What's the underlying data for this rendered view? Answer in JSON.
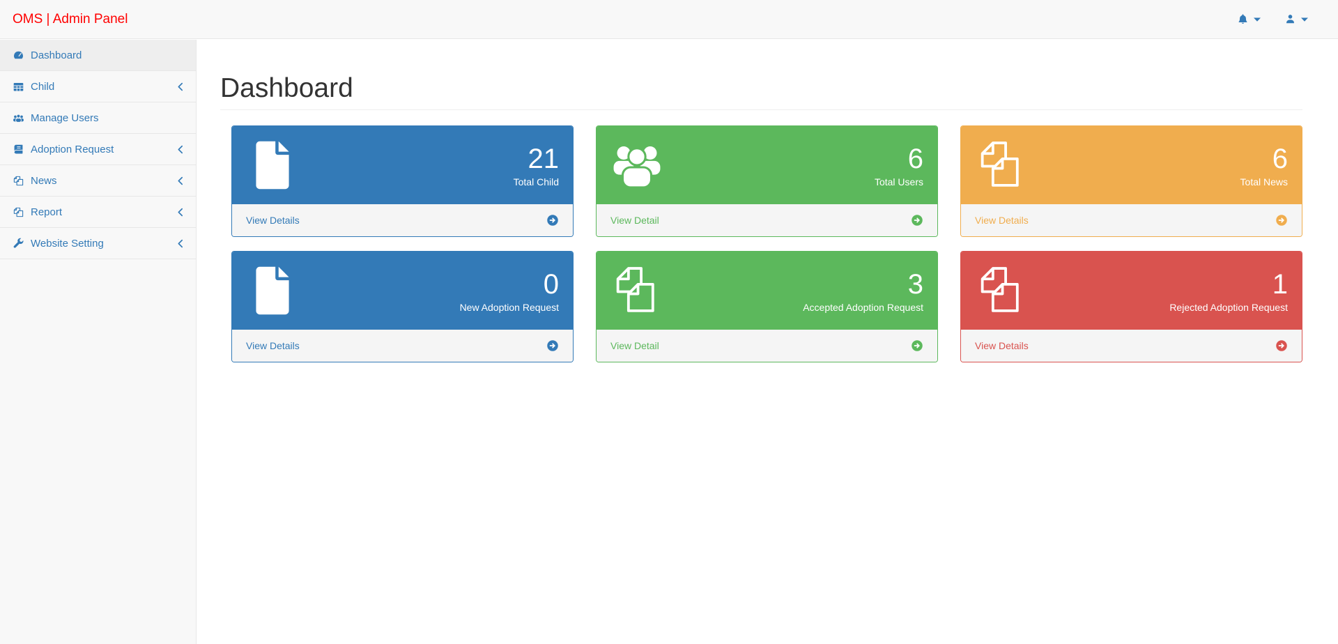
{
  "header": {
    "brand": "OMS | Admin Panel",
    "right_menus": [
      {
        "name": "notifications",
        "icon": "bell-icon",
        "caret_icon": "caret-down-icon"
      },
      {
        "name": "user",
        "icon": "user-icon",
        "caret_icon": "caret-down-icon"
      }
    ]
  },
  "sidebar": {
    "items": [
      {
        "label": "Dashboard",
        "icon": "dashboard-icon",
        "active": true,
        "has_submenu": false
      },
      {
        "label": "Child",
        "icon": "table-icon",
        "active": false,
        "has_submenu": true
      },
      {
        "label": "Manage Users",
        "icon": "users-icon",
        "active": false,
        "has_submenu": false
      },
      {
        "label": "Adoption Request",
        "icon": "book-icon",
        "active": false,
        "has_submenu": true
      },
      {
        "label": "News",
        "icon": "copy-icon",
        "active": false,
        "has_submenu": true
      },
      {
        "label": "Report",
        "icon": "copy-icon",
        "active": false,
        "has_submenu": true
      },
      {
        "label": "Website Setting",
        "icon": "wrench-icon",
        "active": false,
        "has_submenu": true
      }
    ]
  },
  "page": {
    "title": "Dashboard"
  },
  "cards": [
    {
      "value": 21,
      "label": "Total Child",
      "link_label": "View Details",
      "color": "#337ab7",
      "icon": "file-icon"
    },
    {
      "value": 6,
      "label": "Total Users",
      "link_label": "View Detail",
      "color": "#5cb85c",
      "icon": "users-icon"
    },
    {
      "value": 6,
      "label": "Total News",
      "link_label": "View Details",
      "color": "#f0ad4e",
      "icon": "copy-icon"
    },
    {
      "value": 0,
      "label": "New Adoption Request",
      "link_label": "View Details",
      "color": "#337ab7",
      "icon": "file-icon"
    },
    {
      "value": 3,
      "label": "Accepted Adoption Request",
      "link_label": "View Detail",
      "color": "#5cb85c",
      "icon": "copy-icon"
    },
    {
      "value": 1,
      "label": "Rejected Adoption Request",
      "link_label": "View Details",
      "color": "#d9534f",
      "icon": "copy-icon"
    }
  ],
  "colors": {
    "brand_red": "#ff0000",
    "link_blue": "#337ab7",
    "navbar_bg": "#f8f8f8",
    "border": "#e7e7e7",
    "active_item_bg": "#eeeeee",
    "panel_primary": "#337ab7",
    "panel_success": "#5cb85c",
    "panel_warning": "#f0ad4e",
    "panel_danger": "#d9534f",
    "panel_footer_bg": "#f5f5f5"
  }
}
